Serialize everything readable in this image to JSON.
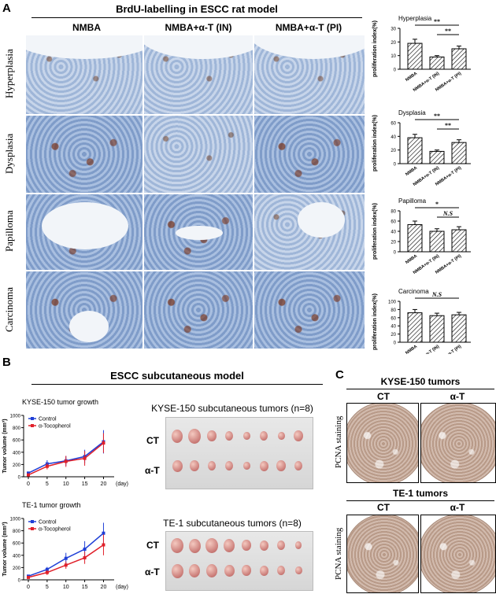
{
  "panel_a": {
    "letter": "A",
    "title": "BrdU-labelling in ESCC rat model",
    "columns": [
      "NMBA",
      "NMBA+α-T (IN)",
      "NMBA+α-T (PI)"
    ],
    "rows": [
      "Hyperplasia",
      "Dysplasia",
      "Papilloma",
      "Carcinoma"
    ]
  },
  "bar_charts": [
    {
      "title": "Hyperplasia",
      "sig_top": "**",
      "sig_inner": "**",
      "ymax": 30,
      "ticks": [
        "0",
        "10",
        "20",
        "30"
      ]
    },
    {
      "title": "Dysplasia",
      "sig_top": "**",
      "sig_inner": "**",
      "ymax": 60,
      "ticks": [
        "0",
        "20",
        "40",
        "60"
      ]
    },
    {
      "title": "Papilloma",
      "sig_top": "*",
      "sig_inner": "N.S",
      "ymax": 80,
      "ticks": [
        "0",
        "20",
        "40",
        "60",
        "80"
      ]
    },
    {
      "title": "Carcinoma",
      "sig_top": "N.S",
      "sig_inner": "",
      "ymax": 100,
      "ticks": [
        "0",
        "20",
        "40",
        "60",
        "80",
        "100"
      ]
    }
  ],
  "bar_ylabel": "proliferation index(%)",
  "bar_categories": [
    "NMBA",
    "NMBA+α-T (IN)",
    "NMBA+α-T (PI)"
  ],
  "chart_data": [
    {
      "type": "bar",
      "title": "Hyperplasia",
      "categories": [
        "NMBA",
        "NMBA+α-T (IN)",
        "NMBA+α-T (PI)"
      ],
      "values": [
        19,
        9,
        15
      ],
      "errors": [
        3,
        1,
        2
      ],
      "ylabel": "proliferation index(%)",
      "ylim": [
        0,
        30
      ]
    },
    {
      "type": "bar",
      "title": "Dysplasia",
      "categories": [
        "NMBA",
        "NMBA+α-T (IN)",
        "NMBA+α-T (PI)"
      ],
      "values": [
        38,
        18,
        31
      ],
      "errors": [
        5,
        2,
        4
      ],
      "ylabel": "proliferation index(%)",
      "ylim": [
        0,
        60
      ]
    },
    {
      "type": "bar",
      "title": "Papilloma",
      "categories": [
        "NMBA",
        "NMBA+α-T (IN)",
        "NMBA+α-T (PI)"
      ],
      "values": [
        53,
        40,
        43
      ],
      "errors": [
        7,
        5,
        6
      ],
      "ylabel": "proliferation index(%)",
      "ylim": [
        0,
        80
      ]
    },
    {
      "type": "bar",
      "title": "Carcinoma",
      "categories": [
        "NMBA",
        "NMBA+α-T (IN)",
        "NMBA+α-T (PI)"
      ],
      "values": [
        72,
        65,
        67
      ],
      "errors": [
        8,
        6,
        6
      ],
      "ylabel": "proliferation index(%)",
      "ylim": [
        0,
        100
      ]
    },
    {
      "type": "line",
      "title": "KYSE-150 tumor growth",
      "x": [
        0,
        5,
        10,
        15,
        20
      ],
      "series": [
        {
          "name": "Control",
          "values": [
            60,
            210,
            260,
            330,
            570
          ],
          "errors": [
            20,
            60,
            80,
            110,
            190
          ]
        },
        {
          "name": "α-Tocopherol",
          "values": [
            30,
            170,
            250,
            300,
            550
          ],
          "errors": [
            20,
            50,
            90,
            120,
            160
          ]
        }
      ],
      "xlabel": "(day)",
      "ylabel": "Tumor volume (mm³)",
      "ylim": [
        0,
        1000
      ],
      "yticks": [
        "0",
        "200",
        "400",
        "600",
        "800",
        "1000"
      ],
      "xticks": [
        "0",
        "5",
        "10",
        "15",
        "20"
      ]
    },
    {
      "type": "line",
      "title": "TE-1 tumor growth",
      "x": [
        0,
        5,
        10,
        15,
        20
      ],
      "series": [
        {
          "name": "Control",
          "values": [
            60,
            170,
            350,
            500,
            760
          ],
          "errors": [
            20,
            40,
            90,
            130,
            170
          ]
        },
        {
          "name": "α-Tocopherol",
          "values": [
            40,
            120,
            240,
            360,
            570
          ],
          "errors": [
            20,
            40,
            60,
            100,
            170
          ]
        }
      ],
      "xlabel": "(day)",
      "ylabel": "Tumor volume (mm³)",
      "ylim": [
        0,
        1000
      ],
      "yticks": [
        "0",
        "200",
        "400",
        "600",
        "800",
        "1000"
      ],
      "xticks": [
        "0",
        "5",
        "10",
        "15",
        "20"
      ]
    }
  ],
  "panel_b": {
    "letter": "B",
    "title": "ESCC subcutaneous model",
    "kyse_photo_title": "KYSE-150 subcutaneous tumors (n=8)",
    "te_photo_title": "TE-1 subcutaneous tumors (n=8)",
    "row_ct": "CT",
    "row_at": "α-T",
    "colors": {
      "control": "#1f3fd6",
      "alpha": "#e0202a"
    }
  },
  "panel_c": {
    "letter": "C",
    "kyse_title": "KYSE-150 tumors",
    "te_title": "TE-1 tumors",
    "ct": "CT",
    "at": "α-T",
    "side_label": "PCNA staining",
    "side_label_2": "PCNA staining"
  }
}
